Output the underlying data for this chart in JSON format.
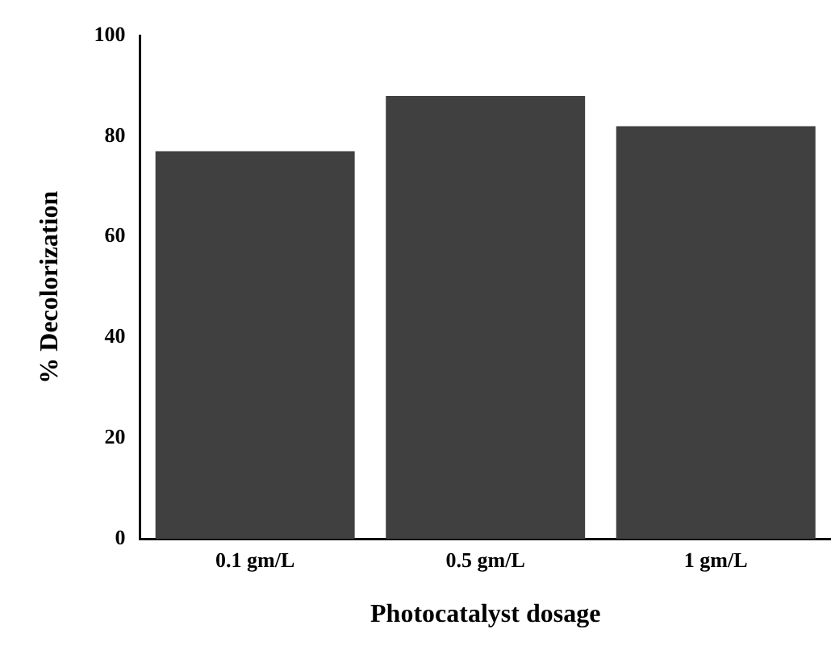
{
  "chart_data": {
    "type": "bar",
    "xlabel": "Photocatalyst dosage",
    "ylabel": "% Decolorization",
    "categories": [
      "0.1 gm/L",
      "0.5 gm/L",
      "1 gm/L"
    ],
    "values": [
      77,
      88,
      82
    ],
    "color": "#404040",
    "ylim": [
      0,
      100
    ],
    "yticks": [
      0,
      20,
      40,
      60,
      80,
      100
    ],
    "grid": false,
    "legend": false
  }
}
